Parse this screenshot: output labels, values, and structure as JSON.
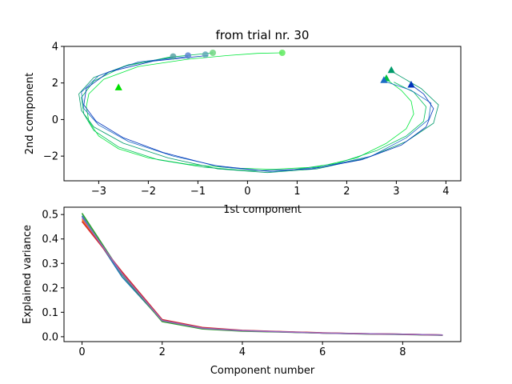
{
  "chart_data": [
    {
      "type": "line",
      "title": "from trial nr. 30",
      "xlabel": "1st component",
      "ylabel": "2nd component",
      "xlim": [
        -3.7,
        4.3
      ],
      "ylim": [
        -3.35,
        4.0
      ],
      "xticks": [
        -3,
        -2,
        -1,
        0,
        1,
        2,
        3,
        4
      ],
      "yticks": [
        -2,
        0,
        2,
        4
      ],
      "grid": false,
      "series": [
        {
          "color": "#00e83a",
          "values": [
            [
              0.7,
              3.65
            ],
            [
              0.2,
              3.62
            ],
            [
              -0.4,
              3.5
            ],
            [
              -1.2,
              3.3
            ],
            [
              -2.2,
              2.9
            ],
            [
              -2.9,
              2.2
            ],
            [
              -3.2,
              1.4
            ],
            [
              -3.25,
              0.7
            ],
            [
              -3.2,
              -0.1
            ],
            [
              -3.0,
              -0.9
            ],
            [
              -2.6,
              -1.6
            ],
            [
              -2.0,
              -2.1
            ],
            [
              -1.2,
              -2.45
            ],
            [
              -0.3,
              -2.65
            ],
            [
              0.5,
              -2.72
            ],
            [
              1.4,
              -2.6
            ],
            [
              2.2,
              -2.1
            ],
            [
              2.8,
              -1.3
            ],
            [
              3.2,
              -0.5
            ],
            [
              3.35,
              0.3
            ],
            [
              3.3,
              1.0
            ],
            [
              3.1,
              1.6
            ],
            [
              2.8,
              2.2
            ]
          ]
        },
        {
          "color": "#00c05a",
          "values": [
            [
              -0.7,
              3.65
            ],
            [
              -1.6,
              3.4
            ],
            [
              -2.5,
              2.9
            ],
            [
              -3.1,
              2.1
            ],
            [
              -3.35,
              1.2
            ],
            [
              -3.3,
              0.3
            ],
            [
              -3.1,
              -0.6
            ],
            [
              -2.6,
              -1.5
            ],
            [
              -1.8,
              -2.2
            ],
            [
              -0.9,
              -2.6
            ],
            [
              0,
              -2.8
            ],
            [
              0.9,
              -2.75
            ],
            [
              1.8,
              -2.4
            ],
            [
              2.6,
              -1.7
            ],
            [
              3.2,
              -0.9
            ],
            [
              3.55,
              -0.1
            ],
            [
              3.6,
              0.7
            ],
            [
              3.35,
              1.5
            ],
            [
              2.95,
              2.05
            ]
          ]
        },
        {
          "color": "#009a6a",
          "values": [
            [
              -1.5,
              3.4
            ],
            [
              -2.4,
              3.0
            ],
            [
              -3.1,
              2.3
            ],
            [
              -3.4,
              1.4
            ],
            [
              -3.35,
              0.5
            ],
            [
              -3.1,
              -0.4
            ],
            [
              -2.5,
              -1.3
            ],
            [
              -1.6,
              -2.1
            ],
            [
              -0.6,
              -2.7
            ],
            [
              0.4,
              -2.9
            ],
            [
              1.4,
              -2.7
            ],
            [
              2.4,
              -2.1
            ],
            [
              3.2,
              -1.2
            ],
            [
              3.75,
              -0.2
            ],
            [
              3.85,
              0.8
            ],
            [
              3.5,
              1.7
            ],
            [
              2.9,
              2.65
            ]
          ]
        },
        {
          "color": "#1b6bc4",
          "values": [
            [
              -1.2,
              3.45
            ],
            [
              -2.2,
              3.15
            ],
            [
              -3.0,
              2.4
            ],
            [
              -3.35,
              1.5
            ],
            [
              -3.3,
              0.6
            ],
            [
              -3.0,
              -0.3
            ],
            [
              -2.4,
              -1.2
            ],
            [
              -1.5,
              -2.0
            ],
            [
              -0.5,
              -2.6
            ],
            [
              0.5,
              -2.85
            ],
            [
              1.5,
              -2.6
            ],
            [
              2.5,
              -2.0
            ],
            [
              3.2,
              -1.0
            ],
            [
              3.65,
              0.0
            ],
            [
              3.7,
              0.9
            ],
            [
              3.3,
              1.6
            ],
            [
              2.75,
              2.1
            ]
          ]
        },
        {
          "color": "#0033bb",
          "values": [
            [
              -0.8,
              3.5
            ],
            [
              -1.9,
              3.2
            ],
            [
              -2.8,
              2.6
            ],
            [
              -3.25,
              1.7
            ],
            [
              -3.3,
              0.8
            ],
            [
              -3.05,
              -0.1
            ],
            [
              -2.5,
              -1.0
            ],
            [
              -1.7,
              -1.8
            ],
            [
              -0.7,
              -2.5
            ],
            [
              0.3,
              -2.8
            ],
            [
              1.3,
              -2.7
            ],
            [
              2.3,
              -2.2
            ],
            [
              3.1,
              -1.4
            ],
            [
              3.6,
              -0.4
            ],
            [
              3.75,
              0.6
            ],
            [
              3.55,
              1.4
            ],
            [
              3.3,
              1.9
            ]
          ]
        }
      ],
      "start_markers": [
        {
          "x": 0.7,
          "y": 3.65,
          "color": "#55e855"
        },
        {
          "x": -0.7,
          "y": 3.65,
          "color": "#66d47a"
        },
        {
          "x": -0.85,
          "y": 3.55,
          "color": "#5aa6b4"
        },
        {
          "x": -1.5,
          "y": 3.45,
          "color": "#4f9fa0"
        },
        {
          "x": -1.2,
          "y": 3.5,
          "color": "#5580d0"
        }
      ],
      "end_markers": [
        {
          "x": -2.6,
          "y": 1.75,
          "color": "#00e000"
        },
        {
          "x": 2.8,
          "y": 2.25,
          "color": "#00c040"
        },
        {
          "x": 2.9,
          "y": 2.7,
          "color": "#009a6a"
        },
        {
          "x": 2.75,
          "y": 2.15,
          "color": "#1b6bc4"
        },
        {
          "x": 3.3,
          "y": 1.9,
          "color": "#0033bb"
        }
      ]
    },
    {
      "type": "line",
      "xlabel": "Component number",
      "ylabel": "Explained variance",
      "xlim": [
        -0.45,
        9.45
      ],
      "ylim": [
        -0.02,
        0.53
      ],
      "xticks": [
        0,
        2,
        4,
        6,
        8
      ],
      "yticks": [
        0.0,
        0.1,
        0.2,
        0.3,
        0.4,
        0.5
      ],
      "grid": false,
      "x": [
        0,
        1,
        2,
        3,
        4,
        5,
        6,
        7,
        8,
        9
      ],
      "series": [
        {
          "color": "#1f77b4",
          "values": [
            0.495,
            0.245,
            0.065,
            0.033,
            0.025,
            0.02,
            0.015,
            0.012,
            0.01,
            0.007
          ]
        },
        {
          "color": "#ff7f0e",
          "values": [
            0.48,
            0.26,
            0.068,
            0.036,
            0.024,
            0.02,
            0.015,
            0.012,
            0.01,
            0.007
          ]
        },
        {
          "color": "#2ca02c",
          "values": [
            0.505,
            0.255,
            0.062,
            0.032,
            0.023,
            0.019,
            0.015,
            0.011,
            0.009,
            0.006
          ]
        },
        {
          "color": "#d62728",
          "values": [
            0.472,
            0.265,
            0.07,
            0.038,
            0.026,
            0.021,
            0.016,
            0.012,
            0.01,
            0.007
          ]
        },
        {
          "color": "#9467bd",
          "values": [
            0.488,
            0.258,
            0.066,
            0.035,
            0.025,
            0.02,
            0.015,
            0.012,
            0.01,
            0.007
          ]
        }
      ]
    }
  ]
}
